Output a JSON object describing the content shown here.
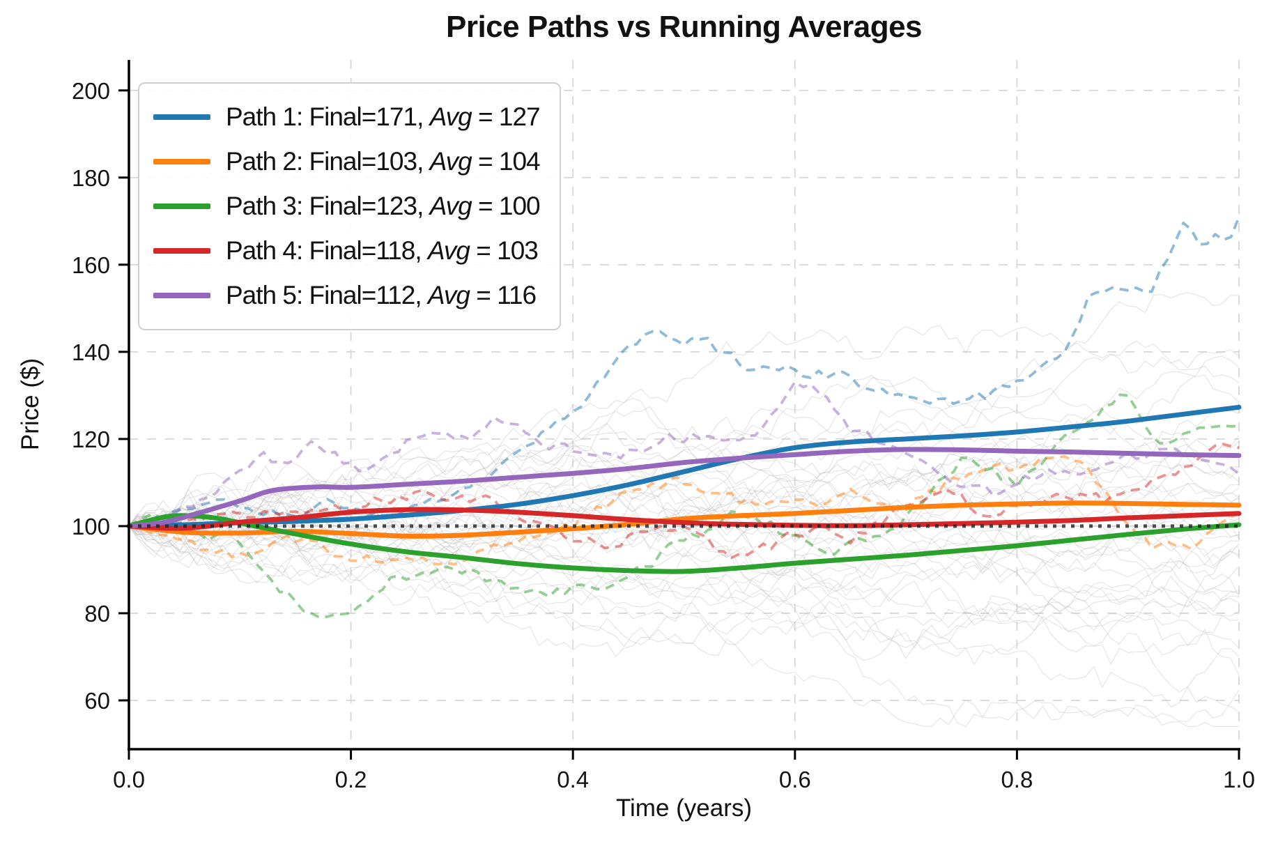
{
  "chart_data": {
    "type": "line",
    "title": "Price Paths vs Running Averages",
    "xlabel": "Time (years)",
    "ylabel": "Price ($)",
    "xlim": [
      0,
      1
    ],
    "ylim": [
      48.8,
      207
    ],
    "x_ticks": [
      {
        "value": 0.0,
        "label": "0.0"
      },
      {
        "value": 0.2,
        "label": "0.2"
      },
      {
        "value": 0.4,
        "label": "0.4"
      },
      {
        "value": 0.6,
        "label": "0.6"
      },
      {
        "value": 0.8,
        "label": "0.8"
      },
      {
        "value": 1.0,
        "label": "1.0"
      }
    ],
    "y_ticks": [
      {
        "value": 60,
        "label": "60"
      },
      {
        "value": 80,
        "label": "80"
      },
      {
        "value": 100,
        "label": "100"
      },
      {
        "value": 120,
        "label": "120"
      },
      {
        "value": 140,
        "label": "140"
      },
      {
        "value": 160,
        "label": "160"
      },
      {
        "value": 180,
        "label": "180"
      },
      {
        "value": 200,
        "label": "200"
      }
    ],
    "grid": true,
    "legend_position": "upper left",
    "reference_line": {
      "value": 100,
      "style": "dotted",
      "color": "#222222",
      "opacity": 0.8
    },
    "series": [
      {
        "name": "Path 1",
        "final": 171,
        "avg": 127,
        "color": "#1f77b4",
        "jitter_seed": 3,
        "legend_prefix": "Path 1: Final=171, ",
        "legend_avg_var": "Avg",
        "legend_avg_rest": " = 127",
        "path": {
          "t": [
            0,
            0.03,
            0.06,
            0.09,
            0.12,
            0.15,
            0.18,
            0.21,
            0.24,
            0.27,
            0.3,
            0.33,
            0.36,
            0.39,
            0.42,
            0.45,
            0.47,
            0.5,
            0.52,
            0.55,
            0.58,
            0.61,
            0.64,
            0.67,
            0.7,
            0.74,
            0.78,
            0.8,
            0.83,
            0.855,
            0.864,
            0.88,
            0.91,
            0.92,
            0.952,
            0.968,
            0.98,
            0.99,
            1.0
          ],
          "v": [
            100,
            102,
            105,
            107,
            104,
            103,
            105,
            103,
            101.5,
            104,
            110,
            112.5,
            118,
            125,
            132,
            140,
            144.5,
            141,
            143,
            137.5,
            136,
            135.5,
            134.5,
            132,
            130,
            127.5,
            130.5,
            133,
            137,
            145.5,
            151.5,
            152.5,
            156,
            153.5,
            170,
            163.5,
            167.5,
            164.5,
            171
          ]
        },
        "running_avg": {
          "t": [
            0,
            0.05,
            0.1,
            0.15,
            0.2,
            0.25,
            0.3,
            0.35,
            0.4,
            0.45,
            0.5,
            0.55,
            0.6,
            0.65,
            0.7,
            0.75,
            0.8,
            0.85,
            0.9,
            0.95,
            1.0
          ],
          "v": [
            100,
            100.3,
            100.8,
            101.1,
            101.6,
            102.5,
            103.6,
            105,
            107,
            109.5,
            112.5,
            115.5,
            118,
            119.3,
            120,
            120.7,
            121.6,
            122.8,
            124.1,
            125.7,
            127.3
          ]
        }
      },
      {
        "name": "Path 2",
        "final": 103,
        "avg": 104,
        "color": "#ff7f0e",
        "jitter_seed": 5,
        "legend_prefix": "Path 2: Final=103, ",
        "legend_avg_var": "Avg",
        "legend_avg_rest": " = 104",
        "path": {
          "t": [
            0,
            0.03,
            0.05,
            0.07,
            0.1,
            0.12,
            0.15,
            0.17,
            0.2,
            0.23,
            0.26,
            0.29,
            0.32,
            0.35,
            0.38,
            0.4,
            0.43,
            0.46,
            0.49,
            0.52,
            0.55,
            0.58,
            0.61,
            0.65,
            0.7,
            0.73,
            0.76,
            0.78,
            0.81,
            0.84,
            0.86,
            0.88,
            0.9,
            0.92,
            0.94,
            0.96,
            0.98,
            1.0
          ],
          "v": [
            100,
            98,
            96,
            94.5,
            93.5,
            95,
            97,
            95.5,
            93,
            91.5,
            92.5,
            92,
            94,
            96,
            98,
            100,
            105,
            108,
            110.5,
            109,
            105.5,
            106.5,
            105,
            107,
            104.5,
            108.5,
            112,
            112.5,
            114.5,
            116.5,
            113,
            108,
            101,
            95.5,
            96.5,
            95,
            100,
            103
          ]
        },
        "running_avg": {
          "t": [
            0,
            0.05,
            0.1,
            0.15,
            0.2,
            0.25,
            0.3,
            0.35,
            0.4,
            0.45,
            0.5,
            0.55,
            0.6,
            0.65,
            0.7,
            0.75,
            0.8,
            0.85,
            0.9,
            0.95,
            1.0
          ],
          "v": [
            100,
            98.6,
            98.4,
            98.8,
            98.3,
            97.7,
            97.9,
            98.6,
            99.4,
            100.4,
            101.7,
            102.4,
            102.9,
            103.6,
            104.3,
            104.8,
            105.1,
            105.3,
            105.2,
            105,
            104.8
          ]
        }
      },
      {
        "name": "Path 3",
        "final": 123,
        "avg": 100,
        "color": "#2ca02c",
        "jitter_seed": 7,
        "legend_prefix": "Path 3: Final=123, ",
        "legend_avg_var": "Avg",
        "legend_avg_rest": " = 100",
        "path": {
          "t": [
            0,
            0.02,
            0.04,
            0.07,
            0.1,
            0.12,
            0.14,
            0.16,
            0.19,
            0.21,
            0.23,
            0.26,
            0.29,
            0.31,
            0.34,
            0.37,
            0.4,
            0.43,
            0.46,
            0.49,
            0.52,
            0.55,
            0.57,
            0.6,
            0.63,
            0.66,
            0.7,
            0.72,
            0.75,
            0.78,
            0.8,
            0.82,
            0.84,
            0.87,
            0.895,
            0.914,
            0.928,
            0.95,
            0.97,
            1.0
          ],
          "v": [
            100,
            103,
            100.5,
            98,
            96,
            91,
            85,
            81,
            78.5,
            81,
            87,
            89.5,
            92,
            90,
            86,
            84.5,
            85.5,
            87,
            90,
            95,
            99,
            104,
            102,
            97,
            94.5,
            97,
            102,
            107,
            115,
            112,
            110,
            113,
            119,
            125,
            131.5,
            122.5,
            118,
            121.5,
            122.5,
            123
          ]
        },
        "running_avg": {
          "t": [
            0,
            0.03,
            0.05,
            0.08,
            0.11,
            0.15,
            0.2,
            0.25,
            0.3,
            0.35,
            0.4,
            0.45,
            0.5,
            0.55,
            0.6,
            0.65,
            0.7,
            0.75,
            0.8,
            0.85,
            0.9,
            0.95,
            1.0
          ],
          "v": [
            100,
            102,
            102.4,
            101.8,
            100.2,
            98.2,
            95.9,
            94.1,
            92.8,
            91.4,
            90.4,
            89.8,
            89.6,
            90.4,
            91.5,
            92.4,
            93.3,
            94.4,
            95.5,
            96.8,
            98.1,
            99.3,
            100.3
          ]
        }
      },
      {
        "name": "Path 4",
        "final": 118,
        "avg": 103,
        "color": "#d62728",
        "jitter_seed": 11,
        "legend_prefix": "Path 4: Final=118, ",
        "legend_avg_var": "Avg",
        "legend_avg_rest": " = 103",
        "path": {
          "t": [
            0,
            0.03,
            0.05,
            0.08,
            0.1,
            0.13,
            0.16,
            0.2,
            0.23,
            0.26,
            0.3,
            0.33,
            0.36,
            0.4,
            0.43,
            0.46,
            0.5,
            0.53,
            0.56,
            0.6,
            0.62,
            0.65,
            0.68,
            0.71,
            0.74,
            0.77,
            0.8,
            0.83,
            0.86,
            0.88,
            0.9,
            0.92,
            0.94,
            0.96,
            0.98,
            1.0
          ],
          "v": [
            100,
            98.5,
            101,
            103,
            102,
            104,
            103,
            104.5,
            106,
            107.5,
            107,
            105,
            101,
            98,
            96,
            98,
            99,
            94.5,
            93.5,
            97.5,
            99,
            97,
            101,
            105.5,
            107,
            103,
            104,
            106,
            108,
            106,
            108,
            110,
            112,
            114.5,
            119,
            118
          ]
        },
        "running_avg": {
          "t": [
            0,
            0.05,
            0.1,
            0.15,
            0.2,
            0.25,
            0.3,
            0.35,
            0.4,
            0.45,
            0.5,
            0.55,
            0.6,
            0.65,
            0.7,
            0.75,
            0.8,
            0.85,
            0.9,
            0.95,
            1.0
          ],
          "v": [
            100,
            99.5,
            100.9,
            101.9,
            103.2,
            103.8,
            103.7,
            103.2,
            102.4,
            101.5,
            100.8,
            100.4,
            100.2,
            100.1,
            100.3,
            100.6,
            100.9,
            101.3,
            101.9,
            102.4,
            102.9
          ]
        }
      },
      {
        "name": "Path 5",
        "final": 112,
        "avg": 116,
        "color": "#9467bd",
        "jitter_seed": 13,
        "legend_prefix": "Path 5: Final=112, ",
        "legend_avg_var": "Avg",
        "legend_avg_rest": " = 116",
        "path": {
          "t": [
            0,
            0.03,
            0.06,
            0.09,
            0.117,
            0.13,
            0.15,
            0.17,
            0.19,
            0.21,
            0.224,
            0.25,
            0.28,
            0.31,
            0.333,
            0.36,
            0.38,
            0.4,
            0.42,
            0.45,
            0.486,
            0.52,
            0.55,
            0.57,
            0.6,
            0.615,
            0.65,
            0.68,
            0.71,
            0.75,
            0.78,
            0.8,
            0.83,
            0.85,
            0.87,
            0.9,
            0.934,
            0.96,
            0.99,
            1.0
          ],
          "v": [
            100,
            102,
            105,
            110,
            116.5,
            115,
            116,
            118.5,
            116,
            111.5,
            115,
            119,
            120,
            121,
            124.5,
            122,
            119,
            118,
            116,
            117,
            120.5,
            121,
            118.5,
            122,
            134,
            133,
            123,
            118,
            115,
            107.5,
            107,
            110,
            112.5,
            113,
            114,
            116,
            117.5,
            115.5,
            114,
            112
          ]
        },
        "running_avg": {
          "t": [
            0,
            0.03,
            0.06,
            0.1,
            0.13,
            0.17,
            0.2,
            0.25,
            0.3,
            0.35,
            0.4,
            0.45,
            0.5,
            0.55,
            0.6,
            0.65,
            0.7,
            0.75,
            0.8,
            0.85,
            0.9,
            0.95,
            1.0
          ],
          "v": [
            100,
            100.8,
            102.8,
            105.8,
            108.2,
            109,
            108.9,
            109.6,
            110.3,
            111.2,
            112.1,
            113.2,
            114.6,
            115.6,
            116.4,
            117.2,
            117.6,
            117.5,
            117.2,
            117,
            116.7,
            116.4,
            116.2
          ]
        }
      }
    ],
    "background_paths": {
      "count": 40,
      "seed": 2024,
      "steps": 130,
      "sigma": 1.75,
      "drift": 0.2,
      "start": 100,
      "color": "#c2c2c2",
      "opacity": 0.4
    }
  }
}
